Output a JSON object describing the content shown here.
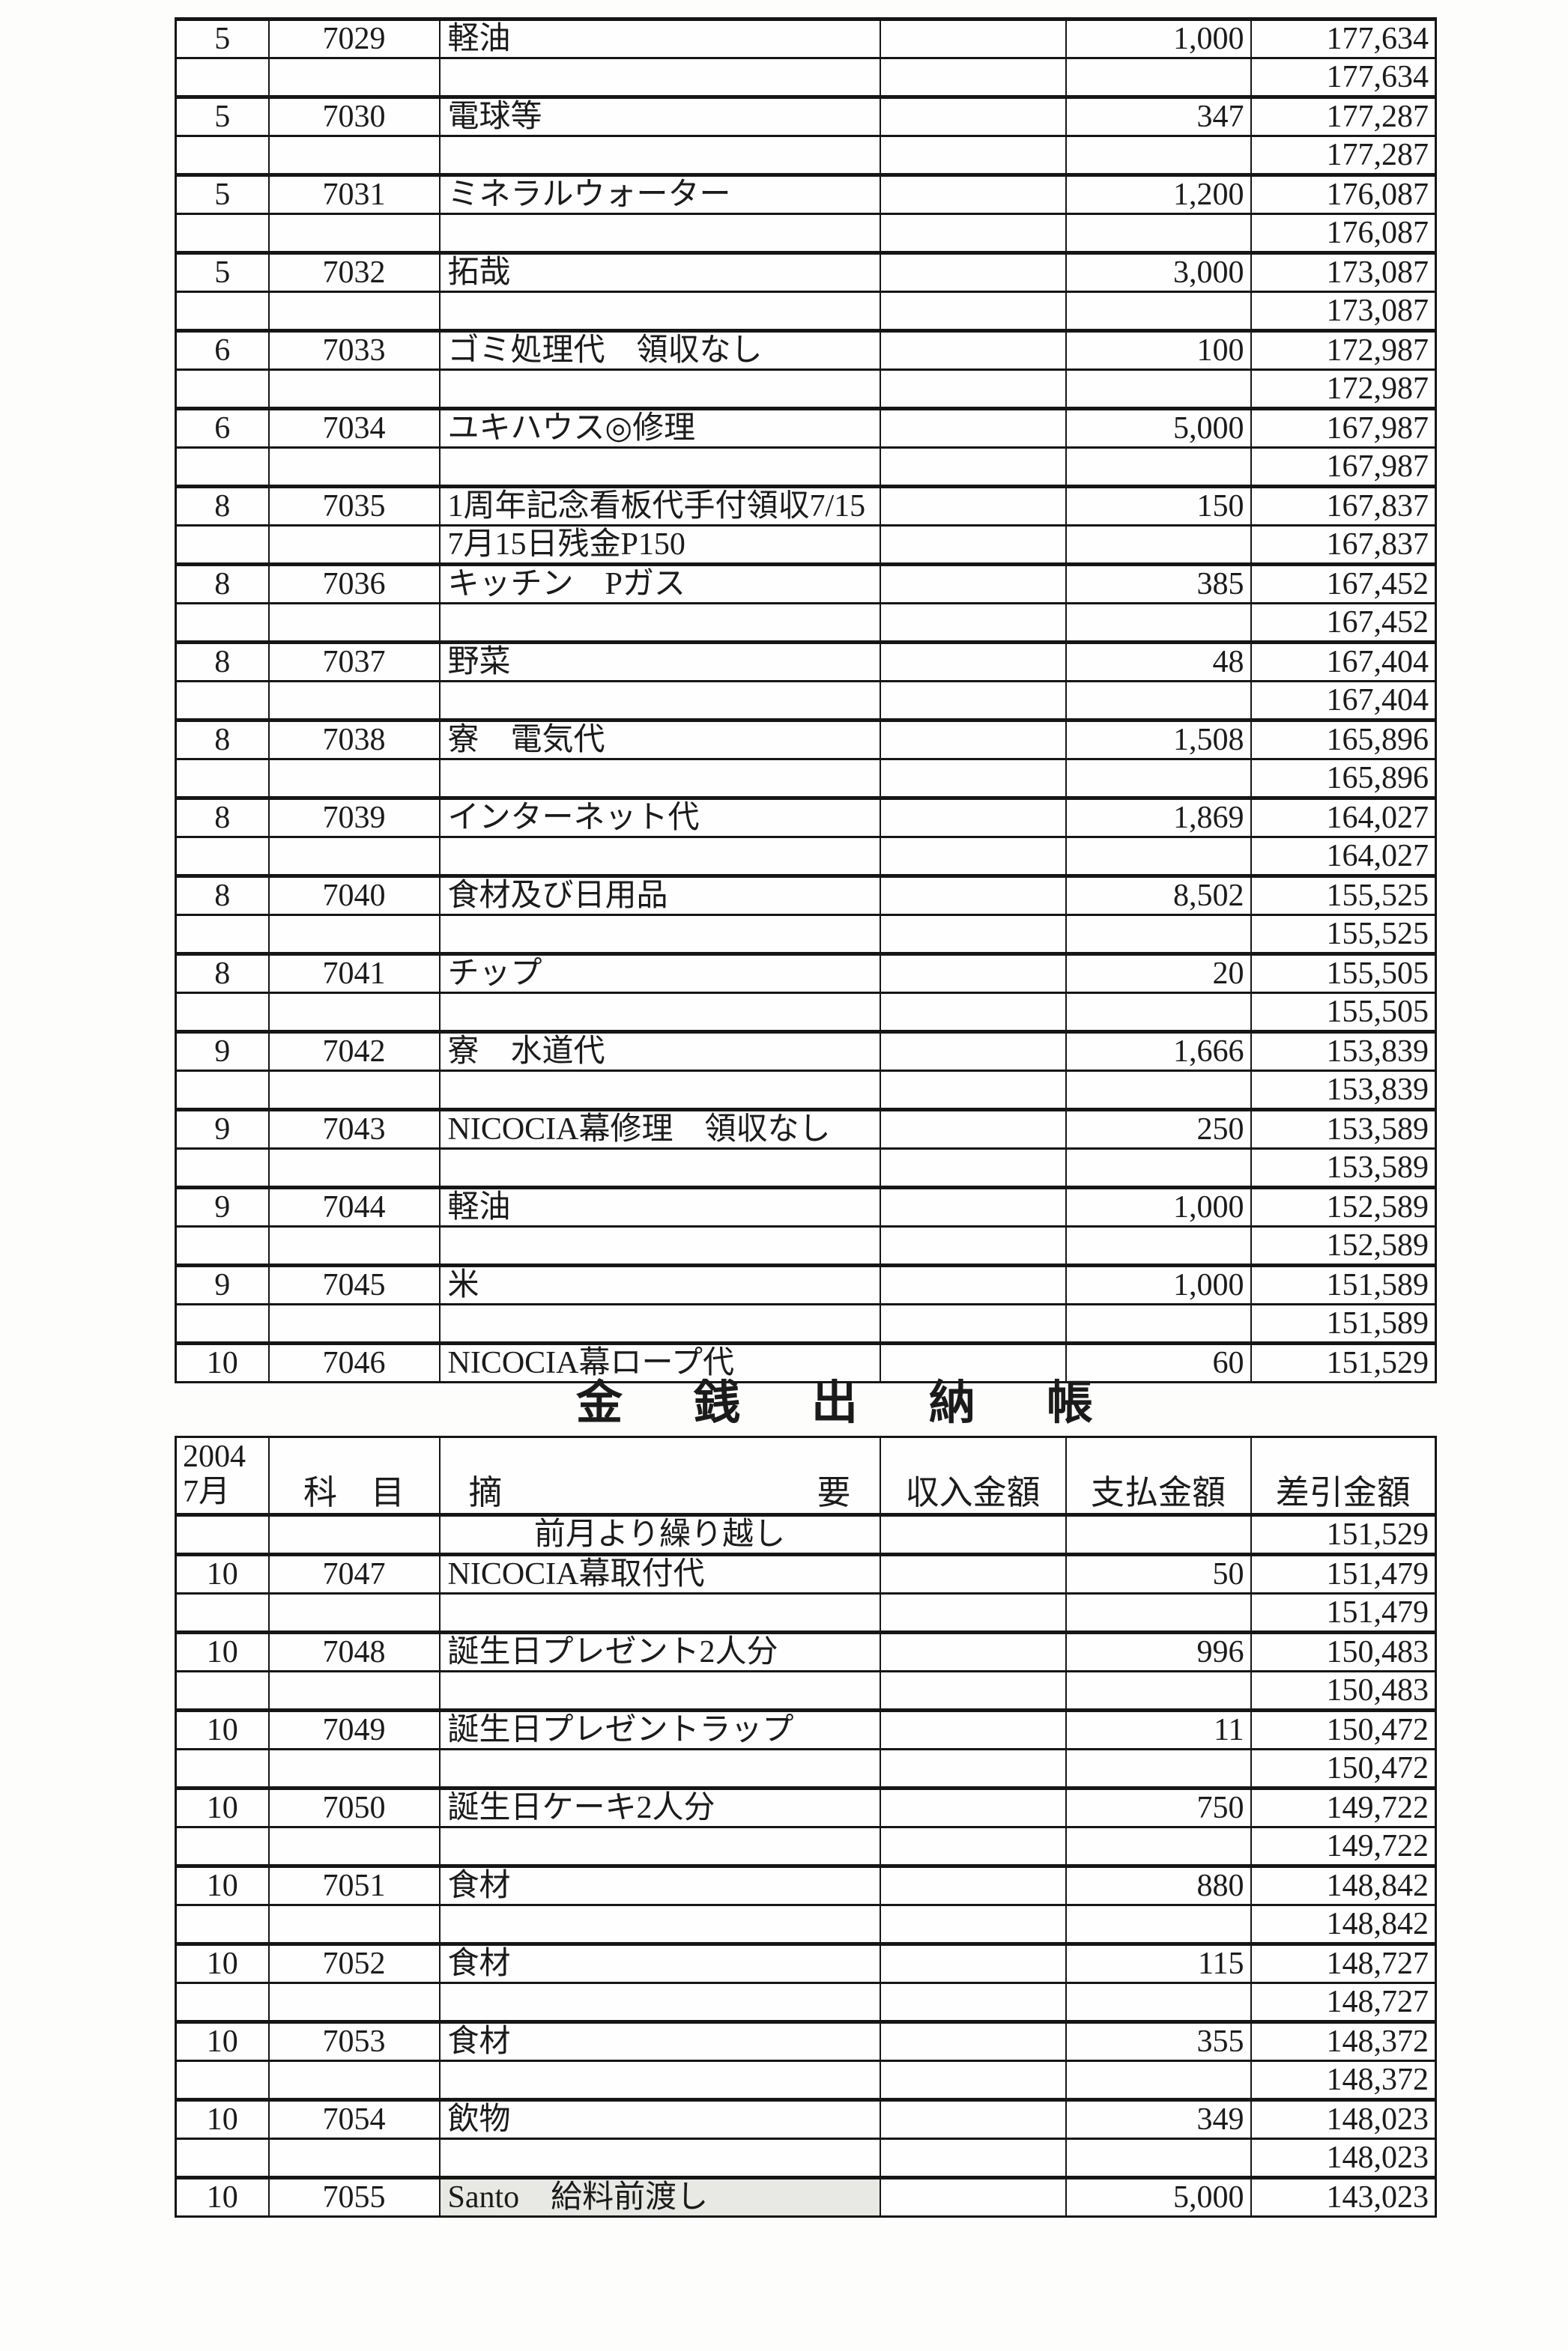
{
  "page": {
    "background": "#fdfdfc",
    "text_color": "#1b1b1b",
    "line_color": "#161616",
    "shaded_cell_color": "#e8e8e4"
  },
  "title": {
    "text": "金銭出納帳"
  },
  "tables": [
    {
      "name": "ledger-table-top",
      "rows": [
        {
          "type": "main",
          "day": "5",
          "code": "7029",
          "desc": "軽油",
          "income": "",
          "expense": "1,000",
          "balance": "177,634"
        },
        {
          "type": "sub",
          "day": "",
          "code": "",
          "desc": "",
          "income": "",
          "expense": "",
          "balance": "177,634"
        },
        {
          "type": "main",
          "day": "5",
          "code": "7030",
          "desc": "電球等",
          "income": "",
          "expense": "347",
          "balance": "177,287"
        },
        {
          "type": "sub",
          "day": "",
          "code": "",
          "desc": "",
          "income": "",
          "expense": "",
          "balance": "177,287"
        },
        {
          "type": "main",
          "day": "5",
          "code": "7031",
          "desc": "ミネラルウォーター",
          "income": "",
          "expense": "1,200",
          "balance": "176,087"
        },
        {
          "type": "sub",
          "day": "",
          "code": "",
          "desc": "",
          "income": "",
          "expense": "",
          "balance": "176,087"
        },
        {
          "type": "main",
          "day": "5",
          "code": "7032",
          "desc": "拓哉",
          "income": "",
          "expense": "3,000",
          "balance": "173,087"
        },
        {
          "type": "sub",
          "day": "",
          "code": "",
          "desc": "",
          "income": "",
          "expense": "",
          "balance": "173,087"
        },
        {
          "type": "main",
          "day": "6",
          "code": "7033",
          "desc": "ゴミ処理代　領収なし",
          "income": "",
          "expense": "100",
          "balance": "172,987"
        },
        {
          "type": "sub",
          "day": "",
          "code": "",
          "desc": "",
          "income": "",
          "expense": "",
          "balance": "172,987"
        },
        {
          "type": "main",
          "day": "6",
          "code": "7034",
          "desc": "ユキハウス◎修理",
          "income": "",
          "expense": "5,000",
          "balance": "167,987"
        },
        {
          "type": "sub",
          "day": "",
          "code": "",
          "desc": "",
          "income": "",
          "expense": "",
          "balance": "167,987"
        },
        {
          "type": "main",
          "day": "8",
          "code": "7035",
          "desc": "1周年記念看板代手付領収7/15",
          "income": "",
          "expense": "150",
          "balance": "167,837"
        },
        {
          "type": "sub",
          "day": "",
          "code": "",
          "desc": "7月15日残金P150",
          "income": "",
          "expense": "",
          "balance": "167,837"
        },
        {
          "type": "main",
          "day": "8",
          "code": "7036",
          "desc": "キッチン　Pガス",
          "income": "",
          "expense": "385",
          "balance": "167,452"
        },
        {
          "type": "sub",
          "day": "",
          "code": "",
          "desc": "",
          "income": "",
          "expense": "",
          "balance": "167,452"
        },
        {
          "type": "main",
          "day": "8",
          "code": "7037",
          "desc": "野菜",
          "income": "",
          "expense": "48",
          "balance": "167,404"
        },
        {
          "type": "sub",
          "day": "",
          "code": "",
          "desc": "",
          "income": "",
          "expense": "",
          "balance": "167,404"
        },
        {
          "type": "main",
          "day": "8",
          "code": "7038",
          "desc": "寮　電気代",
          "income": "",
          "expense": "1,508",
          "balance": "165,896"
        },
        {
          "type": "sub",
          "day": "",
          "code": "",
          "desc": "",
          "income": "",
          "expense": "",
          "balance": "165,896"
        },
        {
          "type": "main",
          "day": "8",
          "code": "7039",
          "desc": "インターネット代",
          "income": "",
          "expense": "1,869",
          "balance": "164,027"
        },
        {
          "type": "sub",
          "day": "",
          "code": "",
          "desc": "",
          "income": "",
          "expense": "",
          "balance": "164,027"
        },
        {
          "type": "main",
          "day": "8",
          "code": "7040",
          "desc": "食材及び日用品",
          "income": "",
          "expense": "8,502",
          "balance": "155,525"
        },
        {
          "type": "sub",
          "day": "",
          "code": "",
          "desc": "",
          "income": "",
          "expense": "",
          "balance": "155,525"
        },
        {
          "type": "main",
          "day": "8",
          "code": "7041",
          "desc": "チップ",
          "income": "",
          "expense": "20",
          "balance": "155,505"
        },
        {
          "type": "sub",
          "day": "",
          "code": "",
          "desc": "",
          "income": "",
          "expense": "",
          "balance": "155,505"
        },
        {
          "type": "main",
          "day": "9",
          "code": "7042",
          "desc": "寮　水道代",
          "income": "",
          "expense": "1,666",
          "balance": "153,839"
        },
        {
          "type": "sub",
          "day": "",
          "code": "",
          "desc": "",
          "income": "",
          "expense": "",
          "balance": "153,839"
        },
        {
          "type": "main",
          "day": "9",
          "code": "7043",
          "desc": "NICOCIA幕修理　領収なし",
          "income": "",
          "expense": "250",
          "balance": "153,589"
        },
        {
          "type": "sub",
          "day": "",
          "code": "",
          "desc": "",
          "income": "",
          "expense": "",
          "balance": "153,589"
        },
        {
          "type": "main",
          "day": "9",
          "code": "7044",
          "desc": "軽油",
          "income": "",
          "expense": "1,000",
          "balance": "152,589"
        },
        {
          "type": "sub",
          "day": "",
          "code": "",
          "desc": "",
          "income": "",
          "expense": "",
          "balance": "152,589"
        },
        {
          "type": "main",
          "day": "9",
          "code": "7045",
          "desc": "米",
          "income": "",
          "expense": "1,000",
          "balance": "151,589"
        },
        {
          "type": "sub",
          "day": "",
          "code": "",
          "desc": "",
          "income": "",
          "expense": "",
          "balance": "151,589"
        },
        {
          "type": "main",
          "day": "10",
          "code": "7046",
          "desc": "NICOCIA幕ロープ代",
          "income": "",
          "expense": "60",
          "balance": "151,529"
        }
      ]
    },
    {
      "name": "ledger-table-bottom",
      "header": {
        "year": "2004",
        "month": "7月",
        "subject": "科　目",
        "summary_left": "摘",
        "summary_right": "要",
        "income": "収入金額",
        "payment": "支払金額",
        "balance": "差引金額"
      },
      "rows": [
        {
          "type": "carry",
          "day": "",
          "code": "",
          "desc": "前月より繰り越し",
          "income": "",
          "expense": "",
          "balance": "151,529"
        },
        {
          "type": "main",
          "day": "10",
          "code": "7047",
          "desc": "NICOCIA幕取付代",
          "income": "",
          "expense": "50",
          "balance": "151,479"
        },
        {
          "type": "sub",
          "day": "",
          "code": "",
          "desc": "",
          "income": "",
          "expense": "",
          "balance": "151,479"
        },
        {
          "type": "main",
          "day": "10",
          "code": "7048",
          "desc": "誕生日プレゼント2人分",
          "income": "",
          "expense": "996",
          "balance": "150,483"
        },
        {
          "type": "sub",
          "day": "",
          "code": "",
          "desc": "",
          "income": "",
          "expense": "",
          "balance": "150,483"
        },
        {
          "type": "main",
          "day": "10",
          "code": "7049",
          "desc": "誕生日プレゼントラップ",
          "income": "",
          "expense": "11",
          "balance": "150,472"
        },
        {
          "type": "sub",
          "day": "",
          "code": "",
          "desc": "",
          "income": "",
          "expense": "",
          "balance": "150,472"
        },
        {
          "type": "main",
          "day": "10",
          "code": "7050",
          "desc": "誕生日ケーキ2人分",
          "income": "",
          "expense": "750",
          "balance": "149,722"
        },
        {
          "type": "sub",
          "day": "",
          "code": "",
          "desc": "",
          "income": "",
          "expense": "",
          "balance": "149,722"
        },
        {
          "type": "main",
          "day": "10",
          "code": "7051",
          "desc": "食材",
          "income": "",
          "expense": "880",
          "balance": "148,842"
        },
        {
          "type": "sub",
          "day": "",
          "code": "",
          "desc": "",
          "income": "",
          "expense": "",
          "balance": "148,842"
        },
        {
          "type": "main",
          "day": "10",
          "code": "7052",
          "desc": "食材",
          "income": "",
          "expense": "115",
          "balance": "148,727"
        },
        {
          "type": "sub",
          "day": "",
          "code": "",
          "desc": "",
          "income": "",
          "expense": "",
          "balance": "148,727"
        },
        {
          "type": "main",
          "day": "10",
          "code": "7053",
          "desc": "食材",
          "income": "",
          "expense": "355",
          "balance": "148,372"
        },
        {
          "type": "sub",
          "day": "",
          "code": "",
          "desc": "",
          "income": "",
          "expense": "",
          "balance": "148,372"
        },
        {
          "type": "main",
          "day": "10",
          "code": "7054",
          "desc": "飲物",
          "income": "",
          "expense": "349",
          "balance": "148,023"
        },
        {
          "type": "sub",
          "day": "",
          "code": "",
          "desc": "",
          "income": "",
          "expense": "",
          "balance": "148,023"
        },
        {
          "type": "main",
          "day": "10",
          "code": "7055",
          "desc": "Santo　給料前渡し",
          "shaded": true,
          "income": "",
          "expense": "5,000",
          "balance": "143,023"
        }
      ]
    }
  ]
}
